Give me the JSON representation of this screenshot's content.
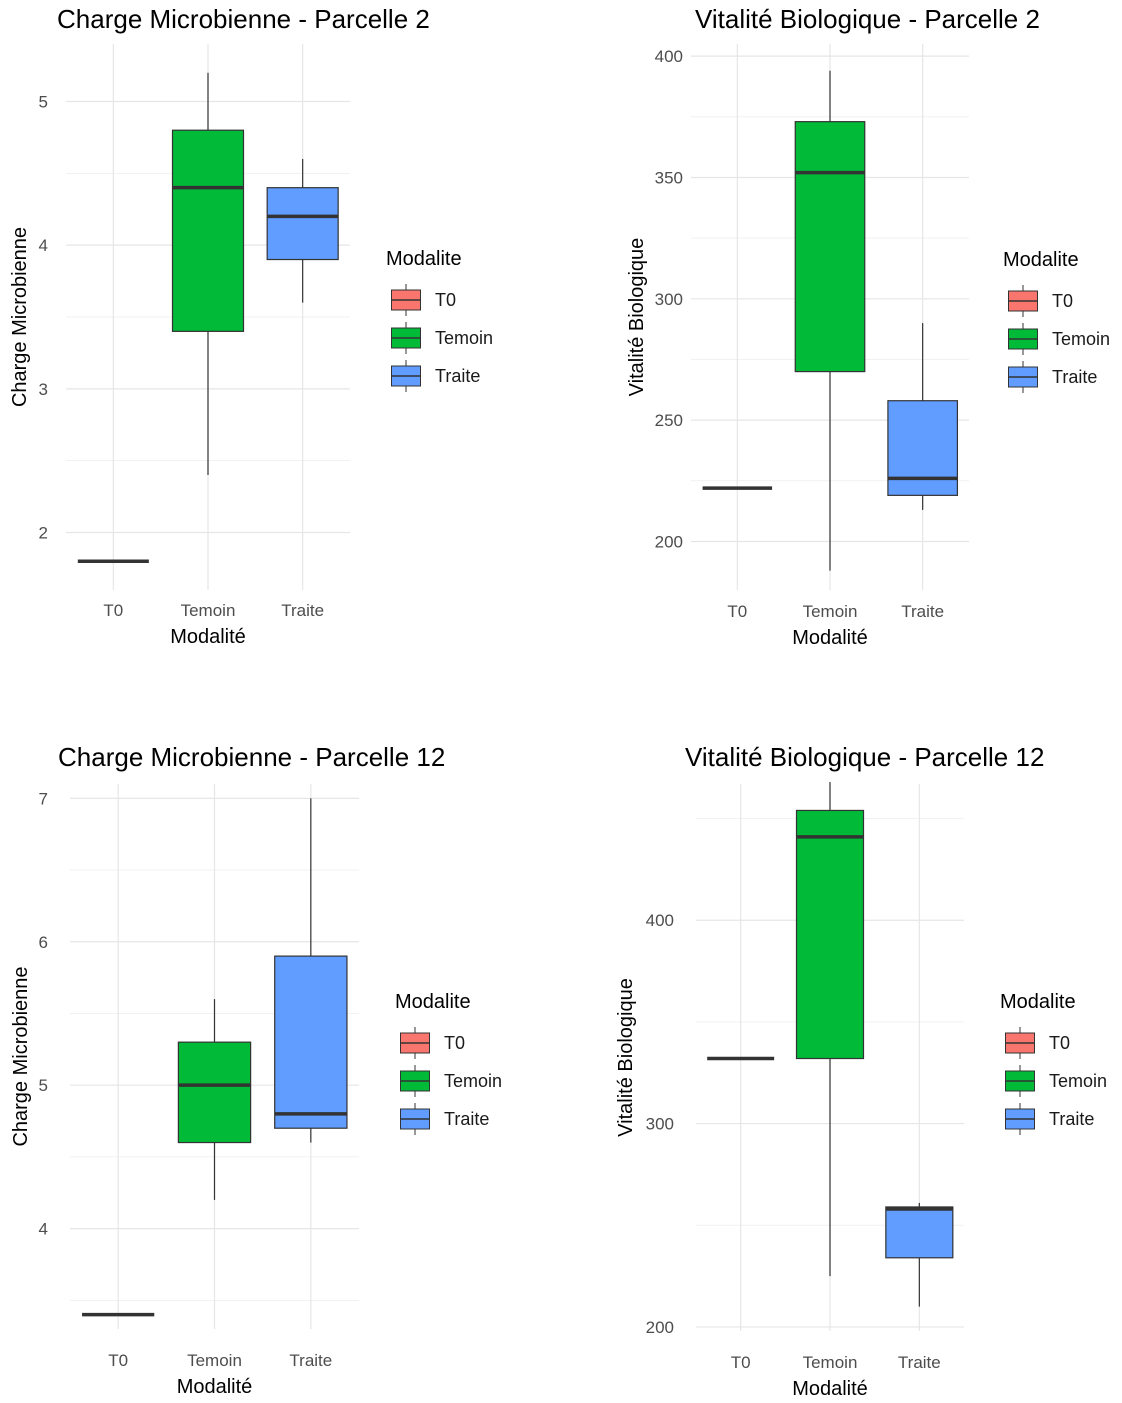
{
  "chart_data": [
    {
      "type": "box",
      "title": "Charge Microbienne - Parcelle 2",
      "xlabel": "Modalité",
      "ylabel": "Charge Microbienne",
      "categories": [
        "T0",
        "Temoin",
        "Traite"
      ],
      "ylim": [
        1.6,
        5.4
      ],
      "yticks": [
        2,
        3,
        4,
        5
      ],
      "yticks_labels": [
        "2",
        "3",
        "4",
        "5"
      ],
      "grid": true,
      "legend": {
        "title": "Modalite",
        "position": "right",
        "entries": [
          "T0",
          "Temoin",
          "Traite"
        ]
      },
      "series": [
        {
          "name": "T0",
          "color": "#F8766D",
          "min": 1.8,
          "q1": 1.8,
          "median": 1.8,
          "q3": 1.8,
          "max": 1.8
        },
        {
          "name": "Temoin",
          "color": "#00BA38",
          "min": 2.4,
          "q1": 3.4,
          "median": 4.4,
          "q3": 4.8,
          "max": 5.2
        },
        {
          "name": "Traite",
          "color": "#619CFF",
          "min": 3.6,
          "q1": 3.9,
          "median": 4.2,
          "q3": 4.4,
          "max": 4.6
        }
      ]
    },
    {
      "type": "box",
      "title": "Vitalité Biologique - Parcelle 2",
      "xlabel": "Modalité",
      "ylabel": "Vitalité Biologique",
      "categories": [
        "T0",
        "Temoin",
        "Traite"
      ],
      "ylim": [
        180,
        405
      ],
      "yticks": [
        200,
        250,
        300,
        350,
        400
      ],
      "yticks_labels": [
        "200",
        "250",
        "300",
        "350",
        "400"
      ],
      "grid": true,
      "legend": {
        "title": "Modalite",
        "position": "right",
        "entries": [
          "T0",
          "Temoin",
          "Traite"
        ]
      },
      "series": [
        {
          "name": "T0",
          "color": "#F8766D",
          "min": 222,
          "q1": 222,
          "median": 222,
          "q3": 222,
          "max": 222
        },
        {
          "name": "Temoin",
          "color": "#00BA38",
          "min": 188,
          "q1": 270,
          "median": 352,
          "q3": 373,
          "max": 394
        },
        {
          "name": "Traite",
          "color": "#619CFF",
          "min": 213,
          "q1": 219,
          "median": 226,
          "q3": 258,
          "max": 290
        }
      ]
    },
    {
      "type": "box",
      "title": "Charge Microbienne - Parcelle 12",
      "xlabel": "Modalité",
      "ylabel": "Charge Microbienne",
      "categories": [
        "T0",
        "Temoin",
        "Traite"
      ],
      "ylim": [
        3.3,
        7.1
      ],
      "yticks": [
        4,
        5,
        6,
        7
      ],
      "yticks_labels": [
        "4",
        "5",
        "6",
        "7"
      ],
      "grid": true,
      "legend": {
        "title": "Modalite",
        "position": "right",
        "entries": [
          "T0",
          "Temoin",
          "Traite"
        ]
      },
      "series": [
        {
          "name": "T0",
          "color": "#F8766D",
          "min": 3.4,
          "q1": 3.4,
          "median": 3.4,
          "q3": 3.4,
          "max": 3.4
        },
        {
          "name": "Temoin",
          "color": "#00BA38",
          "min": 4.2,
          "q1": 4.6,
          "median": 5.0,
          "q3": 5.3,
          "max": 5.6
        },
        {
          "name": "Traite",
          "color": "#619CFF",
          "min": 4.6,
          "q1": 4.7,
          "median": 4.8,
          "q3": 5.9,
          "max": 7.0
        }
      ]
    },
    {
      "type": "box",
      "title": "Vitalité Biologique - Parcelle 12",
      "xlabel": "Modalité",
      "ylabel": "Vitalité Biologique",
      "categories": [
        "T0",
        "Temoin",
        "Traite"
      ],
      "ylim": [
        198,
        467
      ],
      "yticks": [
        200,
        300,
        400
      ],
      "yticks_labels": [
        "200",
        "300",
        "400"
      ],
      "grid": true,
      "legend": {
        "title": "Modalite",
        "position": "right",
        "entries": [
          "T0",
          "Temoin",
          "Traite"
        ]
      },
      "series": [
        {
          "name": "T0",
          "color": "#F8766D",
          "min": 332,
          "q1": 332,
          "median": 332,
          "q3": 332,
          "max": 332
        },
        {
          "name": "Temoin",
          "color": "#00BA38",
          "min": 225,
          "q1": 332,
          "median": 441,
          "q3": 454,
          "max": 468
        },
        {
          "name": "Traite",
          "color": "#619CFF",
          "min": 210,
          "q1": 234,
          "median": 258,
          "q3": 259,
          "max": 261
        }
      ]
    }
  ]
}
